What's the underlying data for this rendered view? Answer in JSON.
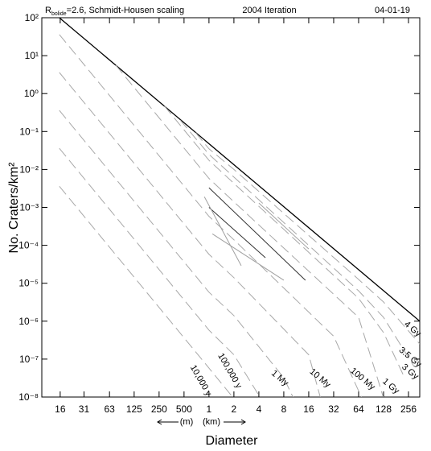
{
  "chart_data": {
    "type": "line",
    "title_prefix": "R",
    "title_subscript": "bolide",
    "title": "=2.6, Schmidt-Housen scaling",
    "subtitle": "2004 Iteration",
    "date": "04-01-19",
    "x_label": "Diameter",
    "y_label": "No. Craters/km²",
    "x_unit_left": "(m)",
    "x_unit_right": "(km)",
    "xscale": "log",
    "yscale": "log",
    "xlim": [
      0.0096,
      350
    ],
    "ylim": [
      1e-08,
      100
    ],
    "xticks": [
      {
        "value": 0.016,
        "label": "16"
      },
      {
        "value": 0.031,
        "label": "31"
      },
      {
        "value": 0.063,
        "label": "63"
      },
      {
        "value": 0.125,
        "label": "125"
      },
      {
        "value": 0.25,
        "label": "250"
      },
      {
        "value": 0.5,
        "label": "500"
      },
      1,
      2,
      4,
      8,
      16,
      32,
      64,
      128,
      256
    ],
    "yticks": [
      {
        "value": 100,
        "label": "10²"
      },
      {
        "value": 10,
        "label": "10¹"
      },
      {
        "value": 1,
        "label": "10⁰"
      },
      {
        "value": 0.1,
        "label": "10⁻¹"
      },
      {
        "value": 0.01,
        "label": "10⁻²"
      },
      {
        "value": 0.001,
        "label": "10⁻³"
      },
      {
        "value": 0.0001,
        "label": "10⁻⁴"
      },
      {
        "value": 1e-05,
        "label": "10⁻⁵"
      },
      {
        "value": 1e-06,
        "label": "10⁻⁶"
      },
      {
        "value": 1e-07,
        "label": "10⁻⁷"
      },
      {
        "value": 1e-08,
        "label": "10⁻⁸"
      }
    ],
    "series": [
      {
        "color": "#000000",
        "style": "solid",
        "x": [
          0.015625,
          350
        ],
        "values": [
          100,
          1e-06
        ]
      },
      {
        "name": "10,000 y",
        "color": "#a8a8a8",
        "style": "dashed",
        "x": [
          0.015625,
          1,
          2.5
        ],
        "values": [
          0.0036,
          5.8e-08,
          5e-09
        ]
      },
      {
        "name": "100,000 y",
        "color": "#a8a8a8",
        "style": "dashed",
        "x": [
          0.015625,
          1,
          2,
          5
        ],
        "values": [
          0.036,
          5.8e-07,
          1.3e-07,
          5e-09
        ]
      },
      {
        "name": "1 My",
        "color": "#a8a8a8",
        "style": "dashed",
        "x": [
          0.015625,
          1,
          2,
          8,
          12
        ],
        "values": [
          0.36,
          5.8e-06,
          1.4e-06,
          3.2e-08,
          5e-09
        ]
      },
      {
        "name": "10 My",
        "color": "#a8a8a8",
        "style": "dashed",
        "x": [
          0.015625,
          1,
          2,
          16,
          24
        ],
        "values": [
          3.6,
          5.8e-05,
          1.4e-05,
          1.3e-07,
          5e-09
        ]
      },
      {
        "name": "100 My",
        "color": "#a8a8a8",
        "style": "dashed",
        "x": [
          0.015625,
          1,
          2,
          32,
          80
        ],
        "values": [
          36,
          0.00058,
          0.00014,
          4e-07,
          5e-09
        ]
      },
      {
        "name": "1 Gy",
        "color": "#a8a8a8",
        "style": "dashed",
        "x": [
          0.075,
          1,
          2,
          64,
          140
        ],
        "values": [
          5.6,
          0.0058,
          0.0014,
          1.26e-06,
          5e-09
        ]
      },
      {
        "name": "3 Gy",
        "color": "#a8a8a8",
        "style": "dashed",
        "x": [
          0.29,
          1,
          2,
          64,
          128,
          230
        ],
        "values": [
          0.47,
          0.0174,
          0.0043,
          4e-06,
          5e-07,
          3.2e-08
        ]
      },
      {
        "name": "3.5 Gy",
        "color": "#a8a8a8",
        "style": "dashed",
        "x": [
          0.45,
          1,
          2,
          64,
          128,
          300
        ],
        "values": [
          0.2,
          0.025,
          0.0063,
          6.3e-06,
          1.26e-06,
          6.3e-08
        ]
      },
      {
        "name": "4 Gy",
        "color": "#a8a8a8",
        "style": "dashed",
        "x": [
          0.69,
          1,
          2,
          64,
          128,
          350
        ],
        "values": [
          0.093,
          0.035,
          0.01,
          1.26e-05,
          3.2e-06,
          2.5e-07
        ]
      },
      {
        "color": "#333333",
        "style": "solid",
        "x": [
          1,
          14.6
        ],
        "values": [
          0.0033,
          1.2e-05
        ]
      },
      {
        "color": "#333333",
        "style": "solid",
        "x": [
          1,
          4.8
        ],
        "values": [
          0.001,
          4.7e-05
        ]
      },
      {
        "color": "#a0a0a0",
        "style": "solid",
        "x": [
          0.88,
          2.45
        ],
        "values": [
          0.0019,
          2.9e-05
        ]
      },
      {
        "color": "#a0a0a0",
        "style": "solid",
        "x": [
          1.1,
          8
        ],
        "values": [
          0.0002,
          1.2e-05
        ]
      },
      {
        "color": "#a0a0a0",
        "style": "solid",
        "x": [
          4,
          16
        ],
        "values": [
          0.0013,
          8e-05
        ]
      }
    ]
  }
}
